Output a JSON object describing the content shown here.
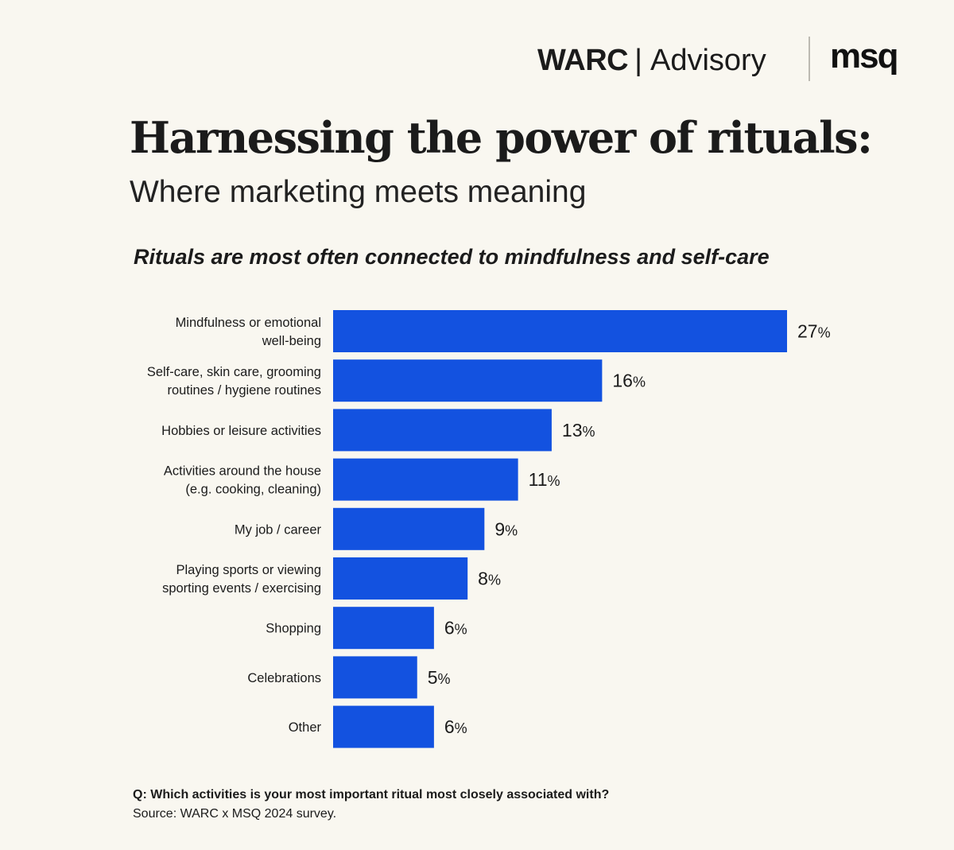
{
  "brand": {
    "warc": "WARC",
    "separator": "|",
    "advisory": "Advisory",
    "msq": "msq"
  },
  "header": {
    "title": "Harnessing the power of rituals:",
    "subtitle": "Where marketing meets meaning"
  },
  "chart_data": {
    "type": "bar",
    "orientation": "horizontal",
    "title": "Rituals are most often connected to mindfulness and self-care",
    "categories": [
      [
        "Mindfulness or emotional",
        "well-being"
      ],
      [
        "Self-care, skin care, grooming",
        "routines / hygiene routines"
      ],
      [
        "Hobbies or leisure activities"
      ],
      [
        "Activities around the house",
        "(e.g. cooking, cleaning)"
      ],
      [
        "My job / career"
      ],
      [
        "Playing sports or viewing",
        "sporting events / exercising"
      ],
      [
        "Shopping"
      ],
      [
        "Celebrations"
      ],
      [
        "Other"
      ]
    ],
    "values": [
      27,
      16,
      13,
      11,
      9,
      8,
      6,
      5,
      6
    ],
    "value_suffix": "%",
    "bar_color": "#1352e0",
    "xlim": [
      0,
      27
    ],
    "grid": false,
    "legend": "none"
  },
  "footer": {
    "question": "Q: Which activities is your most important ritual most closely associated with?",
    "source": "Source: WARC x MSQ 2024 survey."
  }
}
